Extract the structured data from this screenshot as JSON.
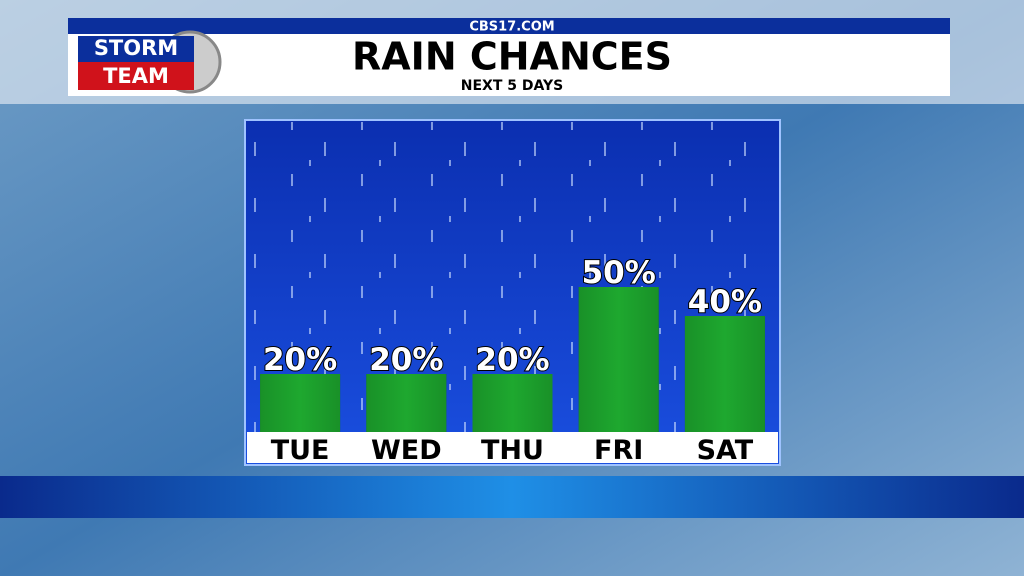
{
  "logo": {
    "line1": "STORM",
    "line2": "TEAM"
  },
  "site": "CBS17.COM",
  "chart_data": {
    "type": "bar",
    "title": "RAIN CHANCES",
    "subtitle": "NEXT 5 DAYS",
    "categories": [
      "TUE",
      "WED",
      "THU",
      "FRI",
      "SAT"
    ],
    "values": [
      20,
      20,
      20,
      50,
      40
    ],
    "value_labels": [
      "20%",
      "20%",
      "20%",
      "50%",
      "40%"
    ],
    "color": "#1ea82f"
  }
}
